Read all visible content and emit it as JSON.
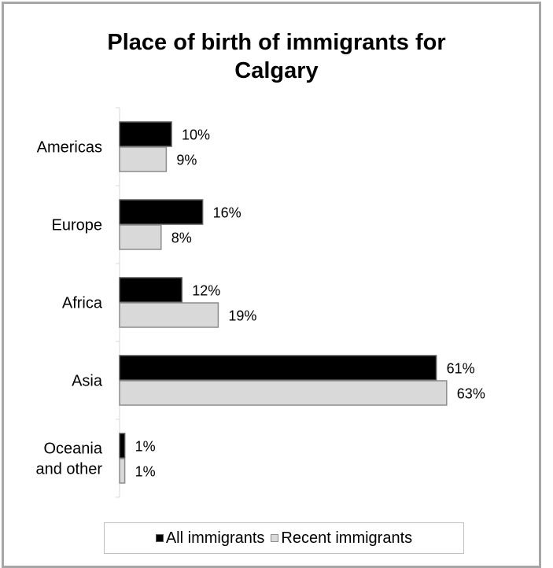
{
  "chart_data": {
    "type": "bar",
    "orientation": "horizontal",
    "title_lines": [
      "Place of birth of immigrants for",
      "Calgary"
    ],
    "categories": [
      {
        "lines": [
          "Americas"
        ]
      },
      {
        "lines": [
          "Europe"
        ]
      },
      {
        "lines": [
          "Africa"
        ]
      },
      {
        "lines": [
          "Asia"
        ]
      },
      {
        "lines": [
          "Oceania",
          "and other"
        ]
      }
    ],
    "series": [
      {
        "name": "All immigrants",
        "values": [
          10,
          16,
          12,
          61,
          1
        ],
        "labels": [
          "10%",
          "16%",
          "12%",
          "61%",
          "1%"
        ],
        "color": "#000000",
        "stroke": "#595959"
      },
      {
        "name": "Recent immigrants",
        "values": [
          9,
          8,
          19,
          63,
          1
        ],
        "labels": [
          "9%",
          "8%",
          "19%",
          "63%",
          "1%"
        ],
        "color": "#d9d9d9",
        "stroke": "#8c8c8c"
      }
    ],
    "value_unit": "%",
    "legend_position": "bottom",
    "grid": false
  }
}
